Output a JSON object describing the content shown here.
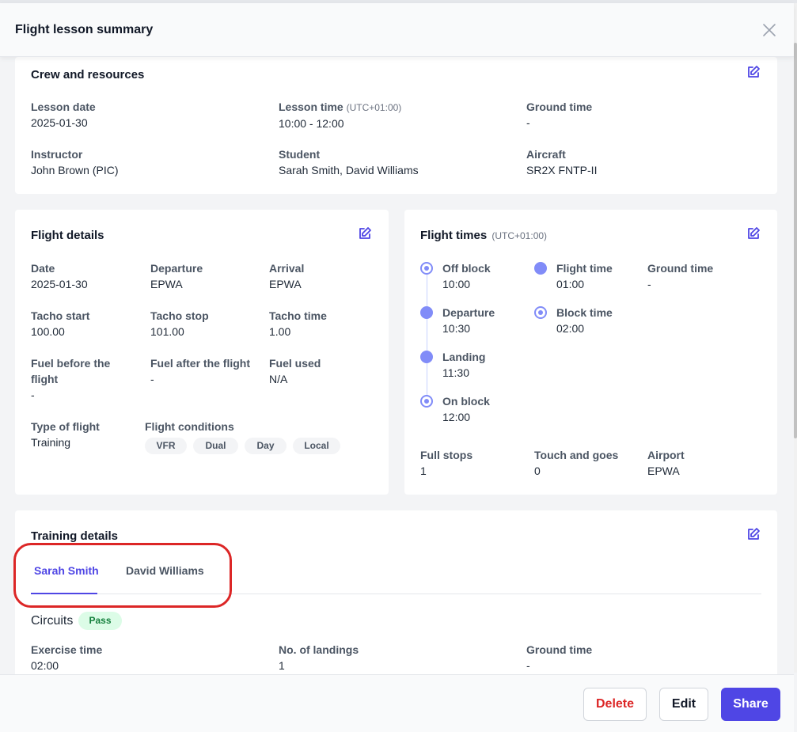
{
  "header": {
    "title": "Flight lesson summary",
    "close_icon": "close-icon"
  },
  "crew": {
    "title": "Crew and resources",
    "fields": {
      "lesson_date": {
        "label": "Lesson date",
        "value": "2025-01-30"
      },
      "lesson_time": {
        "label": "Lesson time",
        "sub": "(UTC+01:00)",
        "value": "10:00 - 12:00"
      },
      "ground_time": {
        "label": "Ground time",
        "value": "-"
      },
      "instructor": {
        "label": "Instructor",
        "value": "John Brown (PIC)"
      },
      "student": {
        "label": "Student",
        "value": "Sarah Smith, David Williams"
      },
      "aircraft": {
        "label": "Aircraft",
        "value": "SR2X FNTP-II"
      }
    }
  },
  "flight_details": {
    "title": "Flight details",
    "fields": {
      "date": {
        "label": "Date",
        "value": "2025-01-30"
      },
      "departure": {
        "label": "Departure",
        "value": "EPWA"
      },
      "arrival": {
        "label": "Arrival",
        "value": "EPWA"
      },
      "tacho_start": {
        "label": "Tacho start",
        "value": "100.00"
      },
      "tacho_stop": {
        "label": "Tacho stop",
        "value": "101.00"
      },
      "tacho_time": {
        "label": "Tacho time",
        "value": "1.00"
      },
      "fuel_before_l1": "Fuel before the",
      "fuel_before_l2": "flight",
      "fuel_before_value": "-",
      "fuel_after": {
        "label": "Fuel after the flight",
        "value": "-"
      },
      "fuel_used": {
        "label": "Fuel used",
        "value": "N/A"
      },
      "type_of_flight": {
        "label": "Type of flight",
        "value": "Training"
      },
      "flight_conditions_label": "Flight conditions"
    },
    "conditions": [
      "VFR",
      "Dual",
      "Day",
      "Local"
    ]
  },
  "flight_times": {
    "title": "Flight times",
    "title_sub": "(UTC+01:00)",
    "timeline": [
      {
        "label": "Off block",
        "value": "10:00"
      },
      {
        "label": "Departure",
        "value": "10:30"
      },
      {
        "label": "Landing",
        "value": "11:30"
      },
      {
        "label": "On block",
        "value": "12:00"
      }
    ],
    "flight_time": {
      "label": "Flight time",
      "value": "01:00"
    },
    "block_time": {
      "label": "Block time",
      "value": "02:00"
    },
    "ground_time": {
      "label": "Ground time",
      "value": "-"
    },
    "full_stops": {
      "label": "Full stops",
      "value": "1"
    },
    "touch_and_goes": {
      "label": "Touch and goes",
      "value": "0"
    },
    "airport": {
      "label": "Airport",
      "value": "EPWA"
    }
  },
  "training": {
    "title": "Training details",
    "tabs": [
      {
        "label": "Sarah Smith",
        "active": true
      },
      {
        "label": "David Williams",
        "active": false
      }
    ],
    "exercise": {
      "name": "Circuits",
      "status": "Pass",
      "exercise_time": {
        "label": "Exercise time",
        "value": "02:00"
      },
      "landings": {
        "label": "No. of landings",
        "value": "1"
      },
      "ground_time": {
        "label": "Ground time",
        "value": "-"
      }
    }
  },
  "footer": {
    "delete_label": "Delete",
    "edit_label": "Edit",
    "share_label": "Share"
  },
  "colors": {
    "accent": "#4f46e5",
    "danger": "#dc2626",
    "pass_bg": "#dcfce7",
    "pass_text": "#15803d",
    "timeline": "#818cf8"
  }
}
